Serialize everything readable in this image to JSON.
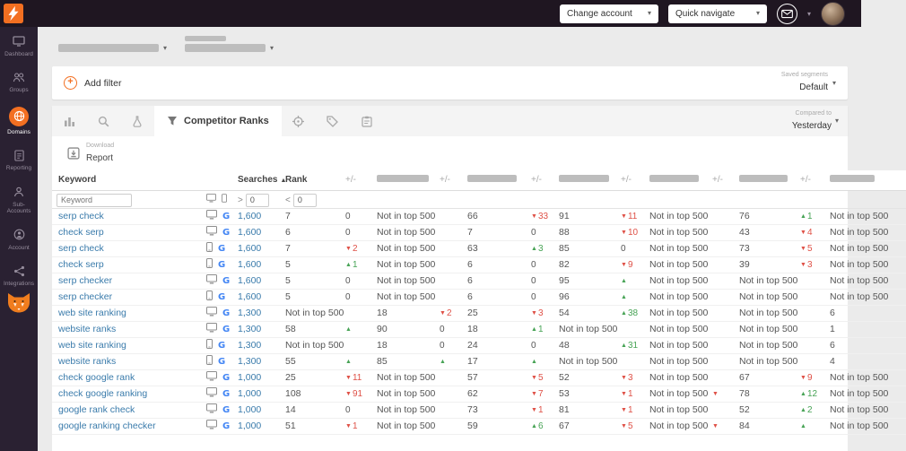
{
  "topbar": {
    "change_account_label": "Change account",
    "quick_navigate_label": "Quick navigate"
  },
  "sidebar": {
    "items": [
      {
        "label": "Dashboard"
      },
      {
        "label": "Groups"
      },
      {
        "label": "Domains"
      },
      {
        "label": "Reporting"
      },
      {
        "label": "Sub-Accounts"
      },
      {
        "label": "Account"
      },
      {
        "label": "Integrations"
      }
    ]
  },
  "filter_bar": {
    "add_filter_label": "Add filter",
    "saved_segments_label": "Saved segments",
    "saved_segments_value": "Default"
  },
  "tab_bar": {
    "active_tab_label": "Competitor Ranks",
    "compared_to_label": "Compared to",
    "compared_to_value": "Yesterday"
  },
  "report": {
    "download_label": "Download",
    "report_label": "Report"
  },
  "table": {
    "headers": {
      "keyword": "Keyword",
      "searches": "Searches",
      "rank": "Rank",
      "change": "+/-"
    },
    "filter": {
      "keyword_placeholder": "Keyword",
      "searches_op": ">",
      "searches_value": "0",
      "rank_op": "<",
      "rank_value": "0"
    },
    "rows": [
      {
        "keyword": "serp check",
        "device": "desktop",
        "engine": "google",
        "searches": "1,600",
        "rank": "7",
        "rc": {
          "d": "zero",
          "v": "0"
        },
        "cells": [
          {
            "v": "Not in top 500",
            "d": "",
            "c": ""
          },
          {
            "v": "66",
            "d": "down",
            "c": "33"
          },
          {
            "v": "91",
            "d": "down",
            "c": "11"
          },
          {
            "v": "Not in top 500",
            "d": "",
            "c": ""
          },
          {
            "v": "76",
            "d": "up",
            "c": "1"
          },
          {
            "v": "Not in top 500"
          }
        ]
      },
      {
        "keyword": "check serp",
        "device": "desktop",
        "engine": "google",
        "searches": "1,600",
        "rank": "6",
        "rc": {
          "d": "zero",
          "v": "0"
        },
        "cells": [
          {
            "v": "Not in top 500",
            "d": "",
            "c": ""
          },
          {
            "v": "7",
            "d": "zero",
            "c": "0"
          },
          {
            "v": "88",
            "d": "down",
            "c": "10"
          },
          {
            "v": "Not in top 500",
            "d": "",
            "c": ""
          },
          {
            "v": "43",
            "d": "down",
            "c": "4"
          },
          {
            "v": "Not in top 500"
          }
        ]
      },
      {
        "keyword": "serp check",
        "device": "mobile",
        "engine": "google",
        "searches": "1,600",
        "rank": "7",
        "rc": {
          "d": "down",
          "v": "2"
        },
        "cells": [
          {
            "v": "Not in top 500",
            "d": "",
            "c": ""
          },
          {
            "v": "63",
            "d": "up",
            "c": "3"
          },
          {
            "v": "85",
            "d": "zero",
            "c": "0"
          },
          {
            "v": "Not in top 500",
            "d": "",
            "c": ""
          },
          {
            "v": "73",
            "d": "down",
            "c": "5"
          },
          {
            "v": "Not in top 500"
          }
        ]
      },
      {
        "keyword": "check serp",
        "device": "mobile",
        "engine": "google",
        "searches": "1,600",
        "rank": "5",
        "rc": {
          "d": "up",
          "v": "1"
        },
        "cells": [
          {
            "v": "Not in top 500",
            "d": "",
            "c": ""
          },
          {
            "v": "6",
            "d": "zero",
            "c": "0"
          },
          {
            "v": "82",
            "d": "down",
            "c": "9"
          },
          {
            "v": "Not in top 500",
            "d": "",
            "c": ""
          },
          {
            "v": "39",
            "d": "down",
            "c": "3"
          },
          {
            "v": "Not in top 500"
          }
        ]
      },
      {
        "keyword": "serp checker",
        "device": "desktop",
        "engine": "google",
        "searches": "1,600",
        "rank": "5",
        "rc": {
          "d": "zero",
          "v": "0"
        },
        "cells": [
          {
            "v": "Not in top 500",
            "d": "",
            "c": ""
          },
          {
            "v": "6",
            "d": "zero",
            "c": "0"
          },
          {
            "v": "95",
            "d": "up",
            "c": ""
          },
          {
            "v": "Not in top 500",
            "d": "",
            "c": ""
          },
          {
            "v": "Not in top 500",
            "d": "",
            "c": ""
          },
          {
            "v": "Not in top 500"
          }
        ]
      },
      {
        "keyword": "serp checker",
        "device": "mobile",
        "engine": "google",
        "searches": "1,600",
        "rank": "5",
        "rc": {
          "d": "zero",
          "v": "0"
        },
        "cells": [
          {
            "v": "Not in top 500",
            "d": "",
            "c": ""
          },
          {
            "v": "6",
            "d": "zero",
            "c": "0"
          },
          {
            "v": "96",
            "d": "up",
            "c": ""
          },
          {
            "v": "Not in top 500",
            "d": "",
            "c": ""
          },
          {
            "v": "Not in top 500",
            "d": "",
            "c": ""
          },
          {
            "v": "Not in top 500"
          }
        ]
      },
      {
        "keyword": "web site ranking",
        "device": "desktop",
        "engine": "google",
        "searches": "1,300",
        "rank": "Not in top 500",
        "rc": {
          "d": "",
          "v": ""
        },
        "cells": [
          {
            "v": "18",
            "d": "down",
            "c": "2"
          },
          {
            "v": "25",
            "d": "down",
            "c": "3"
          },
          {
            "v": "54",
            "d": "up",
            "c": "38"
          },
          {
            "v": "Not in top 500",
            "d": "",
            "c": ""
          },
          {
            "v": "Not in top 500",
            "d": "",
            "c": ""
          },
          {
            "v": "6"
          }
        ]
      },
      {
        "keyword": "website ranks",
        "device": "desktop",
        "engine": "google",
        "searches": "1,300",
        "rank": "58",
        "rc": {
          "d": "up",
          "v": ""
        },
        "cells": [
          {
            "v": "90",
            "d": "zero",
            "c": "0"
          },
          {
            "v": "18",
            "d": "up",
            "c": "1"
          },
          {
            "v": "Not in top 500",
            "d": "",
            "c": ""
          },
          {
            "v": "Not in top 500",
            "d": "",
            "c": ""
          },
          {
            "v": "Not in top 500",
            "d": "",
            "c": ""
          },
          {
            "v": "1"
          }
        ]
      },
      {
        "keyword": "web site ranking",
        "device": "mobile",
        "engine": "google",
        "searches": "1,300",
        "rank": "Not in top 500",
        "rc": {
          "d": "",
          "v": ""
        },
        "cells": [
          {
            "v": "18",
            "d": "zero",
            "c": "0"
          },
          {
            "v": "24",
            "d": "zero",
            "c": "0"
          },
          {
            "v": "48",
            "d": "up",
            "c": "31"
          },
          {
            "v": "Not in top 500",
            "d": "",
            "c": ""
          },
          {
            "v": "Not in top 500",
            "d": "",
            "c": ""
          },
          {
            "v": "6"
          }
        ]
      },
      {
        "keyword": "website ranks",
        "device": "mobile",
        "engine": "google",
        "searches": "1,300",
        "rank": "55",
        "rc": {
          "d": "up",
          "v": ""
        },
        "cells": [
          {
            "v": "85",
            "d": "up",
            "c": ""
          },
          {
            "v": "17",
            "d": "up",
            "c": ""
          },
          {
            "v": "Not in top 500",
            "d": "",
            "c": ""
          },
          {
            "v": "Not in top 500",
            "d": "",
            "c": ""
          },
          {
            "v": "Not in top 500",
            "d": "",
            "c": ""
          },
          {
            "v": "4"
          }
        ]
      },
      {
        "keyword": "check google rank",
        "device": "desktop",
        "engine": "google",
        "searches": "1,000",
        "rank": "25",
        "rc": {
          "d": "down",
          "v": "11"
        },
        "cells": [
          {
            "v": "Not in top 500",
            "d": "",
            "c": ""
          },
          {
            "v": "57",
            "d": "down",
            "c": "5"
          },
          {
            "v": "52",
            "d": "down",
            "c": "3"
          },
          {
            "v": "Not in top 500",
            "d": "",
            "c": ""
          },
          {
            "v": "67",
            "d": "down",
            "c": "9"
          },
          {
            "v": "Not in top 500"
          }
        ]
      },
      {
        "keyword": "check google ranking",
        "device": "desktop",
        "engine": "google",
        "searches": "1,000",
        "rank": "108",
        "rc": {
          "d": "down",
          "v": "91"
        },
        "cells": [
          {
            "v": "Not in top 500",
            "d": "",
            "c": ""
          },
          {
            "v": "62",
            "d": "down",
            "c": "7"
          },
          {
            "v": "53",
            "d": "down",
            "c": "1"
          },
          {
            "v": "Not in top 500",
            "d": "down",
            "c": ""
          },
          {
            "v": "78",
            "d": "up",
            "c": "12"
          },
          {
            "v": "Not in top 500"
          }
        ]
      },
      {
        "keyword": "google rank check",
        "device": "desktop",
        "engine": "google",
        "searches": "1,000",
        "rank": "14",
        "rc": {
          "d": "zero",
          "v": "0"
        },
        "cells": [
          {
            "v": "Not in top 500",
            "d": "",
            "c": ""
          },
          {
            "v": "73",
            "d": "down",
            "c": "1"
          },
          {
            "v": "81",
            "d": "down",
            "c": "1"
          },
          {
            "v": "Not in top 500",
            "d": "",
            "c": ""
          },
          {
            "v": "52",
            "d": "up",
            "c": "2"
          },
          {
            "v": "Not in top 500"
          }
        ]
      },
      {
        "keyword": "google ranking checker",
        "device": "desktop",
        "engine": "google",
        "searches": "1,000",
        "rank": "51",
        "rc": {
          "d": "down",
          "v": "1"
        },
        "cells": [
          {
            "v": "Not in top 500",
            "d": "",
            "c": ""
          },
          {
            "v": "59",
            "d": "up",
            "c": "6"
          },
          {
            "v": "67",
            "d": "down",
            "c": "5"
          },
          {
            "v": "Not in top 500",
            "d": "down",
            "c": ""
          },
          {
            "v": "84",
            "d": "up",
            "c": ""
          },
          {
            "v": "Not in top 500"
          }
        ]
      }
    ]
  },
  "colors": {
    "accent": "#f36f21",
    "link": "#3a7bab",
    "up": "#47a355",
    "down": "#df5147"
  }
}
